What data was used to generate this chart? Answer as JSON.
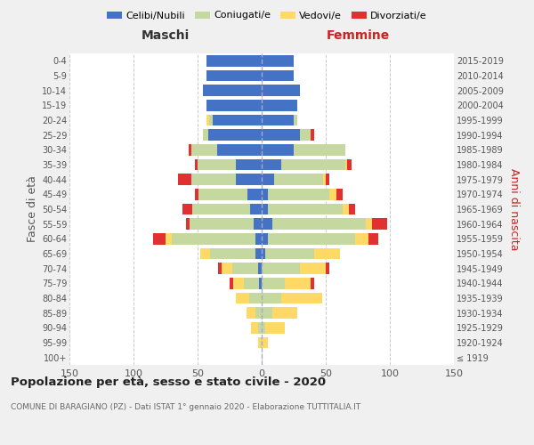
{
  "age_groups": [
    "100+",
    "95-99",
    "90-94",
    "85-89",
    "80-84",
    "75-79",
    "70-74",
    "65-69",
    "60-64",
    "55-59",
    "50-54",
    "45-49",
    "40-44",
    "35-39",
    "30-34",
    "25-29",
    "20-24",
    "15-19",
    "10-14",
    "5-9",
    "0-4"
  ],
  "birth_years": [
    "≤ 1919",
    "1920-1924",
    "1925-1929",
    "1930-1934",
    "1935-1939",
    "1940-1944",
    "1945-1949",
    "1950-1954",
    "1955-1959",
    "1960-1964",
    "1965-1969",
    "1970-1974",
    "1975-1979",
    "1980-1984",
    "1985-1989",
    "1990-1994",
    "1995-1999",
    "2000-2004",
    "2005-2009",
    "2010-2014",
    "2015-2019"
  ],
  "maschi": {
    "celibi": [
      0,
      0,
      0,
      0,
      0,
      2,
      3,
      5,
      5,
      6,
      9,
      11,
      20,
      20,
      35,
      42,
      38,
      43,
      46,
      43,
      43
    ],
    "coniugati": [
      0,
      1,
      3,
      5,
      10,
      12,
      20,
      35,
      65,
      50,
      45,
      38,
      35,
      30,
      20,
      4,
      3,
      0,
      0,
      0,
      0
    ],
    "vedovi": [
      0,
      2,
      5,
      7,
      10,
      8,
      8,
      8,
      5,
      0,
      0,
      0,
      0,
      0,
      0,
      0,
      2,
      0,
      0,
      0,
      0
    ],
    "divorziati": [
      0,
      0,
      0,
      0,
      0,
      3,
      3,
      0,
      10,
      3,
      8,
      3,
      10,
      2,
      2,
      0,
      0,
      0,
      0,
      0,
      0
    ]
  },
  "femmine": {
    "nubili": [
      0,
      0,
      0,
      0,
      0,
      0,
      0,
      3,
      5,
      8,
      5,
      5,
      10,
      15,
      25,
      30,
      25,
      28,
      30,
      25,
      25
    ],
    "coniugate": [
      0,
      0,
      3,
      8,
      15,
      18,
      30,
      38,
      68,
      73,
      58,
      48,
      38,
      50,
      40,
      8,
      3,
      0,
      0,
      0,
      0
    ],
    "vedove": [
      0,
      5,
      15,
      20,
      32,
      20,
      20,
      20,
      10,
      5,
      5,
      5,
      2,
      2,
      0,
      0,
      0,
      0,
      0,
      0,
      0
    ],
    "divorziate": [
      0,
      0,
      0,
      0,
      0,
      3,
      3,
      0,
      8,
      12,
      5,
      5,
      3,
      3,
      0,
      3,
      0,
      0,
      0,
      0,
      0
    ]
  },
  "colors": {
    "celibi": "#4472c4",
    "coniugati": "#c5d8a0",
    "vedovi": "#ffd966",
    "divorziati": "#e03030"
  },
  "xlim": 150,
  "title": "Popolazione per età, sesso e stato civile - 2020",
  "subtitle": "COMUNE DI BARAGIANO (PZ) - Dati ISTAT 1° gennaio 2020 - Elaborazione TUTTITALIA.IT",
  "ylabel_left": "Fasce di età",
  "ylabel_right": "Anni di nascita",
  "xlabel_maschi": "Maschi",
  "xlabel_femmine": "Femmine",
  "legend_labels": [
    "Celibi/Nubili",
    "Coniugati/e",
    "Vedovi/e",
    "Divorziati/e"
  ],
  "bg_color": "#f0f0f0",
  "plot_bg": "#ffffff",
  "grid_color": "#cccccc"
}
